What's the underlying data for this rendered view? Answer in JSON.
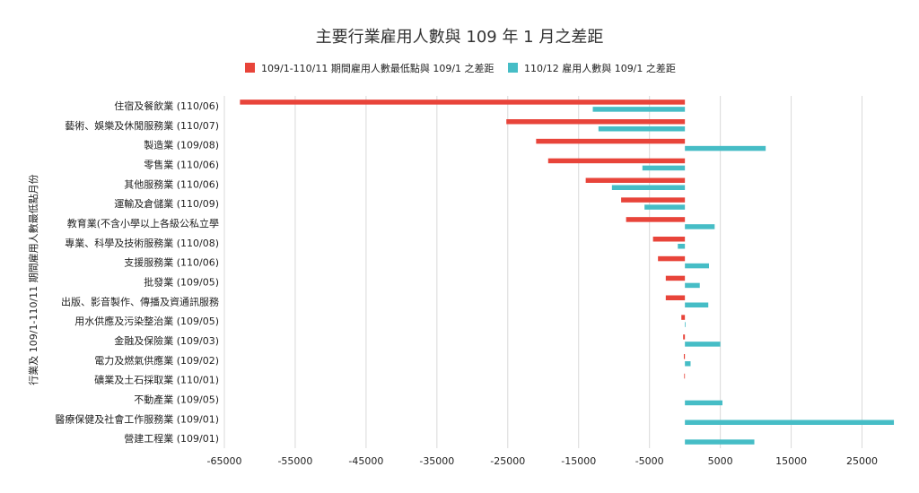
{
  "chart_data": {
    "type": "bar",
    "orientation": "horizontal",
    "title": "主要行業雇用人數與 109 年 1 月之差距",
    "ylabel": "行業及 109/1-110/11 期間雇用人數最低點月份",
    "xlabel": "",
    "xlim": [
      -65000,
      30000
    ],
    "xticks": [
      -65000,
      -55000,
      -45000,
      -35000,
      -25000,
      -15000,
      -5000,
      5000,
      15000,
      25000
    ],
    "legend_position": "top",
    "grid": true,
    "categories": [
      "住宿及餐飲業 (110/06)",
      "藝術、娛樂及休閒服務業 (110/07)",
      "製造業 (109/08)",
      "零售業 (110/06)",
      "其他服務業 (110/06)",
      "運輸及倉儲業 (110/09)",
      "教育業(不含小學以上各級公私立學",
      "專業、科學及技術服務業 (110/08)",
      "支援服務業 (110/06)",
      "批發業 (109/05)",
      "出版、影音製作、傳播及資通訊服務",
      "用水供應及污染整治業 (109/05)",
      "金融及保險業 (109/03)",
      "電力及燃氣供應業 (109/02)",
      "礦業及土石採取業 (110/01)",
      "不動產業 (109/05)",
      "醫療保健及社會工作服務業 (109/01)",
      "營建工程業 (109/01)"
    ],
    "series": [
      {
        "name": "109/1-110/11 期間雇用人數最低點與 109/1 之差距",
        "color": "#e8443a",
        "values": [
          -62800,
          -25200,
          -21000,
          -19300,
          -14000,
          -9000,
          -8300,
          -4500,
          -3800,
          -2700,
          -2700,
          -500,
          -250,
          -150,
          -100,
          0,
          0,
          0
        ]
      },
      {
        "name": "110/12 雇用人數與 109/1 之差距",
        "color": "#46bdc6",
        "values": [
          -13000,
          -12200,
          11400,
          -6000,
          -10300,
          -5700,
          4200,
          -1000,
          3400,
          2100,
          3300,
          100,
          5000,
          800,
          0,
          5300,
          29500,
          9800
        ]
      }
    ]
  }
}
